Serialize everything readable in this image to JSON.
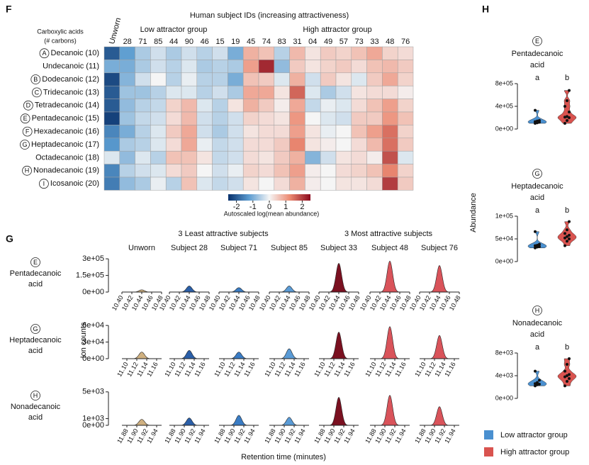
{
  "chart_data": [
    {
      "type": "heatmap",
      "panel": "F",
      "title": "Human subject IDs (increasing attractiveness)",
      "row_header": [
        "Carboxylic acids",
        "(# carbons)"
      ],
      "groups": [
        {
          "name": "Low attractor group",
          "color": "#3b4ba8"
        },
        {
          "name": "High attractor group",
          "color": "#c0303a"
        }
      ],
      "columns": [
        "Unworn",
        "28",
        "71",
        "85",
        "44",
        "90",
        "46",
        "15",
        "19",
        "45",
        "74",
        "83",
        "31",
        "04",
        "49",
        "57",
        "73",
        "33",
        "48",
        "76"
      ],
      "column_colors": [
        "#111111",
        "#3b4ba8",
        "#3b4ba8",
        "#3b4ba8",
        "#3b4ba8",
        "#3b4ba8",
        "#3b4ba8",
        "#3b4ba8",
        "#3b4ba8",
        "#c0303a",
        "#c0303a",
        "#c0303a",
        "#c0303a",
        "#c0303a",
        "#c0303a",
        "#c0303a",
        "#c0303a",
        "#c0303a",
        "#c0303a",
        "#c0303a"
      ],
      "rows": [
        {
          "marker": "A",
          "label": "Decanoic (10)"
        },
        {
          "label": "Undecanoic (11)"
        },
        {
          "marker": "B",
          "label": "Dodecanoic (12)"
        },
        {
          "marker": "C",
          "label": "Tridecanoic (13)"
        },
        {
          "marker": "D",
          "label": "Tetradecanoic (14)"
        },
        {
          "marker": "E",
          "label": "Pentadecanoic (15)"
        },
        {
          "marker": "F",
          "label": "Hexadecanoic (16)"
        },
        {
          "marker": "G",
          "label": "Heptadecanoic (17)"
        },
        {
          "label": "Octadecanoic (18)"
        },
        {
          "marker": "H",
          "label": "Nonadecanoic (19)"
        },
        {
          "marker": "I",
          "label": "Icosanoic (20)"
        }
      ],
      "values": [
        [
          -2.0,
          -1.2,
          -0.6,
          -0.3,
          -0.6,
          -0.3,
          -0.5,
          -0.3,
          -1.0,
          0.8,
          0.6,
          -0.5,
          0.7,
          0.2,
          0.5,
          0.4,
          0.6,
          0.9,
          0.4,
          0.3
        ],
        [
          -1.0,
          -1.0,
          -0.6,
          -0.3,
          -0.5,
          -0.2,
          -0.6,
          -0.5,
          -0.6,
          1.0,
          2.2,
          -0.8,
          0.5,
          0.2,
          0.4,
          0.5,
          0.3,
          0.6,
          0.7,
          0.5
        ],
        [
          -2.2,
          -0.9,
          -0.3,
          0.0,
          -0.5,
          -0.1,
          -0.5,
          -0.5,
          -1.0,
          0.6,
          0.5,
          -0.2,
          0.8,
          -0.3,
          0.5,
          0.2,
          -0.2,
          0.5,
          0.9,
          0.4
        ],
        [
          -2.0,
          -0.7,
          -0.7,
          -0.5,
          -0.2,
          -0.2,
          -0.5,
          -0.3,
          -0.6,
          0.9,
          0.9,
          0.2,
          1.6,
          -0.2,
          -0.6,
          -0.3,
          0.2,
          0.3,
          0.3,
          0.1
        ],
        [
          -2.0,
          -0.8,
          -0.5,
          -0.4,
          0.4,
          0.7,
          -0.2,
          -0.5,
          0.2,
          0.8,
          0.5,
          0.1,
          0.9,
          -0.4,
          -0.1,
          -0.2,
          0.3,
          0.6,
          1.0,
          0.4
        ],
        [
          -2.3,
          -0.7,
          -0.4,
          -0.3,
          0.3,
          0.7,
          -0.3,
          -0.5,
          -0.3,
          0.4,
          0.3,
          0.2,
          1.1,
          0.0,
          -0.2,
          -0.3,
          0.5,
          0.5,
          1.1,
          0.6
        ],
        [
          -1.5,
          -1.0,
          -0.5,
          -0.2,
          0.5,
          0.9,
          -0.3,
          -0.6,
          -0.3,
          0.2,
          0.3,
          0.3,
          1.0,
          0.2,
          -0.1,
          0.0,
          0.6,
          1.0,
          1.5,
          0.4
        ],
        [
          -1.3,
          -0.6,
          -0.5,
          -0.2,
          0.3,
          0.9,
          -0.1,
          -0.4,
          -0.3,
          0.3,
          0.3,
          0.5,
          1.3,
          0.2,
          0.1,
          0.0,
          0.3,
          0.7,
          1.5,
          0.5
        ],
        [
          -0.2,
          -0.8,
          -0.2,
          -0.5,
          0.6,
          0.6,
          0.2,
          -0.4,
          -0.3,
          0.3,
          0.2,
          0.5,
          0.8,
          -0.9,
          -0.3,
          0.2,
          0.3,
          0.1,
          1.8,
          -0.2
        ],
        [
          -1.5,
          -0.5,
          -0.3,
          -0.2,
          0.3,
          0.5,
          0.0,
          -0.3,
          -0.1,
          0.4,
          0.3,
          0.6,
          1.0,
          0.1,
          0.0,
          0.3,
          0.4,
          0.6,
          1.3,
          0.4
        ],
        [
          -1.6,
          -0.8,
          -0.6,
          -0.1,
          -0.5,
          0.6,
          -0.2,
          -0.4,
          -0.3,
          0.2,
          0.0,
          0.3,
          0.8,
          0.1,
          0.0,
          0.2,
          0.2,
          0.3,
          2.0,
          0.5
        ]
      ],
      "clim": [
        -2.5,
        2.5
      ],
      "colors": [
        "#08306b",
        "#5a9bd0",
        "#f5f5f5",
        "#ec8a72",
        "#8b0a1e"
      ],
      "colorbar_ticks": [
        -2,
        -1,
        0,
        1,
        2
      ],
      "colorbar_label": "Autoscaled log(mean abundance)"
    },
    {
      "type": "chromatogram",
      "panel": "G",
      "groups": [
        {
          "name": "3 Least attractive subjects",
          "color": "#3b4ba8"
        },
        {
          "name": "3 Most attractive subjects",
          "color": "#c0303a"
        }
      ],
      "subjects": [
        {
          "name": "Unworn",
          "color": "#cfb080"
        },
        {
          "name": "Subject 28",
          "color": "#2b5fa8"
        },
        {
          "name": "Subject 71",
          "color": "#3a7cc4"
        },
        {
          "name": "Subject 85",
          "color": "#5a9bd6"
        },
        {
          "name": "Subject 33",
          "color": "#7a1020"
        },
        {
          "name": "Subject 48",
          "color": "#d9535a"
        },
        {
          "name": "Subject 76",
          "color": "#d9535a"
        }
      ],
      "ylabel": "Ion counts",
      "xlabel": "Retention time (minutes)",
      "compounds": [
        {
          "marker": "E",
          "label": [
            "Pentadecanoic",
            "acid"
          ],
          "xlim": [
            10.4,
            10.48
          ],
          "xticks": [
            {
              "value": 10.4,
              "label": "10.40"
            },
            10.42,
            10.44,
            10.46,
            {
              "value": 10.48,
              "label": "10.48"
            }
          ],
          "ylim": [
            0,
            320000
          ],
          "yticks": [
            {
              "value": 0,
              "label": "0e+00"
            },
            {
              "value": 150000,
              "label": "1.5e+05"
            },
            {
              "value": 300000,
              "label": "3e+05"
            }
          ],
          "values": [
            20000,
            55000,
            40000,
            55000,
            260000,
            280000,
            240000
          ]
        },
        {
          "marker": "G",
          "label": [
            "Heptadecanoic",
            "acid"
          ],
          "xlim": [
            11.09,
            11.17
          ],
          "xticks": [
            {
              "value": 11.1,
              "label": "11.10"
            },
            11.12,
            11.14,
            11.16
          ],
          "ylim": [
            0,
            64000
          ],
          "yticks": [
            {
              "value": 0,
              "label": "0e+00"
            },
            {
              "value": 30000,
              "label": "3e+04"
            },
            {
              "value": 60000,
              "label": "6e+04"
            }
          ],
          "values": [
            12000,
            15000,
            12000,
            18000,
            48000,
            58000,
            42000
          ]
        },
        {
          "marker": "H",
          "label": [
            "Nonadecanoic",
            "acid"
          ],
          "xlim": [
            11.87,
            11.95
          ],
          "xticks": [
            11.88,
            {
              "value": 11.9,
              "label": "11.90"
            },
            11.92,
            11.94
          ],
          "ylim": [
            0,
            5300
          ],
          "yticks": [
            {
              "value": 0,
              "label": "0e+00"
            },
            {
              "value": 1000,
              "label": "1e+03"
            },
            {
              "value": 5000,
              "label": "5e+03"
            }
          ],
          "values": [
            900,
            1100,
            1500,
            1200,
            4200,
            4500,
            2800
          ]
        }
      ]
    },
    {
      "type": "violin",
      "panel": "H",
      "ylabel": "Abundance",
      "series": [
        {
          "name": "Low attractor group",
          "color": "#4a90d0"
        },
        {
          "name": "High attractor group",
          "color": "#d9534f"
        }
      ],
      "panels": [
        {
          "marker": "E",
          "label": [
            "Pentadecanoic",
            "acid"
          ],
          "letters": [
            "a",
            "b"
          ],
          "ylim": [
            0,
            900000
          ],
          "yticks": [
            {
              "value": 0,
              "label": "0e+00"
            },
            {
              "value": 400000,
              "label": "4e+05"
            },
            {
              "value": 800000,
              "label": "8e+05"
            }
          ],
          "values": [
            [
              100000,
              110000,
              120000,
              130000,
              140000,
              150000,
              330000
            ],
            [
              100000,
              150000,
              200000,
              210000,
              220000,
              300000,
              400000,
              500000,
              680000
            ]
          ]
        },
        {
          "marker": "G",
          "label": [
            "Heptadecanoic",
            "acid"
          ],
          "letters": [
            "a",
            "b"
          ],
          "ylim": [
            0,
            112500
          ],
          "yticks": [
            {
              "value": 0,
              "label": "0e+00"
            },
            {
              "value": 50000,
              "label": "5e+04"
            },
            {
              "value": 100000,
              "label": "1e+05"
            }
          ],
          "values": [
            [
              30000,
              32000,
              33000,
              35000,
              36000,
              38000,
              66000
            ],
            [
              35000,
              45000,
              50000,
              52000,
              55000,
              58000,
              62000,
              70000,
              88000
            ]
          ]
        },
        {
          "marker": "H",
          "label": [
            "Nonadecanoic",
            "acid"
          ],
          "letters": [
            "a",
            "b"
          ],
          "ylim": [
            0,
            9000
          ],
          "yticks": [
            {
              "value": 0,
              "label": "0e+00"
            },
            {
              "value": 4000,
              "label": "4e+03"
            },
            {
              "value": 8000,
              "label": "8e+03"
            }
          ],
          "values": [
            [
              2200,
              2400,
              2500,
              2600,
              2800,
              3200,
              4800
            ],
            [
              2200,
              3000,
              3500,
              3800,
              4000,
              4200,
              4800,
              6000,
              7000
            ]
          ]
        }
      ]
    }
  ]
}
